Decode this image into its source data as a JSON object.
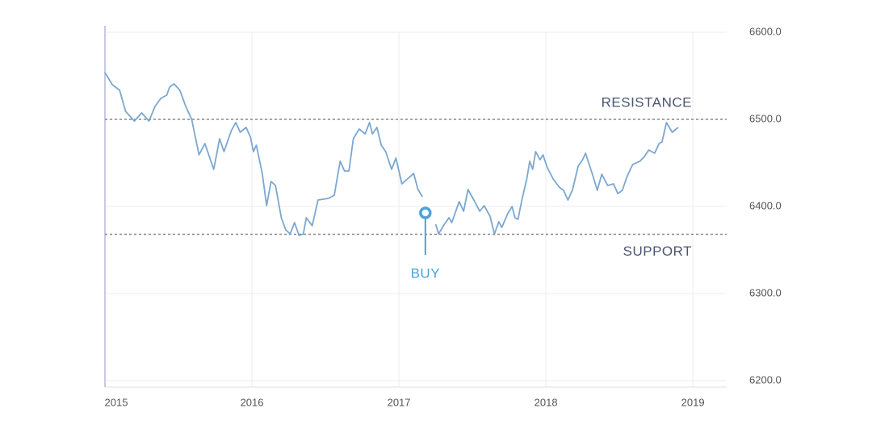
{
  "chart_data": {
    "type": "line",
    "color": "#7ba7d0",
    "x": [
      2015.0,
      2015.05,
      2015.1,
      2015.14,
      2015.2,
      2015.25,
      2015.3,
      2015.34,
      2015.38,
      2015.42,
      2015.44,
      2015.47,
      2015.51,
      2015.55,
      2015.59,
      2015.64,
      2015.68,
      2015.74,
      2015.78,
      2015.81,
      2015.86,
      2015.89,
      2015.92,
      2015.96,
      2015.99,
      2016.01,
      2016.03,
      2016.07,
      2016.1,
      2016.13,
      2016.16,
      2016.2,
      2016.23,
      2016.26,
      2016.29,
      2016.32,
      2016.35,
      2016.37,
      2016.41,
      2016.45,
      2016.52,
      2016.56,
      2016.6,
      2016.63,
      2016.66,
      2016.69,
      2016.73,
      2016.77,
      2016.8,
      2016.82,
      2016.85,
      2016.88,
      2016.91,
      2016.95,
      2016.98,
      2017.02,
      2017.07,
      2017.1,
      2017.13,
      2017.16,
      2017.21,
      2017.25,
      2017.27,
      2017.31,
      2017.34,
      2017.36,
      2017.41,
      2017.44,
      2017.47,
      2017.51,
      2017.55,
      2017.58,
      2017.62,
      2017.65,
      2017.68,
      2017.7,
      2017.74,
      2017.77,
      2017.79,
      2017.81,
      2017.84,
      2017.87,
      2017.89,
      2017.91,
      2017.93,
      2017.96,
      2017.98,
      2018.01,
      2018.05,
      2018.09,
      2018.12,
      2018.15,
      2018.18,
      2018.22,
      2018.25,
      2018.27,
      2018.32,
      2018.35,
      2018.38,
      2018.42,
      2018.46,
      2018.49,
      2018.52,
      2018.55,
      2018.59,
      2018.64,
      2018.67,
      2018.7,
      2018.74,
      2018.77,
      2018.79,
      2018.82,
      2018.86,
      2018.9
    ],
    "values": [
      6553.7,
      6539.8,
      6533.3,
      6509.3,
      6498.1,
      6507.4,
      6498.1,
      6514.8,
      6524.1,
      6527.8,
      6537.0,
      6540.7,
      6533.3,
      6514.8,
      6500,
      6459.3,
      6472.2,
      6442.6,
      6477.8,
      6463.0,
      6487.0,
      6496.3,
      6485.2,
      6490.7,
      6479.6,
      6463.0,
      6470.4,
      6438.0,
      6400.9,
      6428.7,
      6424.1,
      6387.0,
      6373.1,
      6368.5,
      6381.5,
      6366.7,
      6368.5,
      6387.0,
      6377.8,
      6407.4,
      6409.3,
      6413.0,
      6451.9,
      6440.7,
      6440.7,
      6477.8,
      6488.9,
      6483.3,
      6496.3,
      6483.3,
      6490.7,
      6470.4,
      6463.0,
      6442.6,
      6455.6,
      6425.9,
      6433.3,
      6438.0,
      6419.4,
      6411.1,
      null,
      6379.6,
      6368.5,
      6379.6,
      6387.0,
      6381.5,
      6405.6,
      6394.4,
      6419.4,
      6407.4,
      6394.4,
      6400.9,
      6388.9,
      6368.5,
      6382.4,
      6375.9,
      6391.7,
      6400,
      6387.0,
      6385.2,
      6410.2,
      6431.5,
      6451.9,
      6442.6,
      6463.0,
      6453.7,
      6459.3,
      6444.4,
      6431.5,
      6422.2,
      6418.5,
      6407.4,
      6418.5,
      6446.3,
      6453.7,
      6461.1,
      6435.2,
      6418.5,
      6437.0,
      6424.1,
      6425.9,
      6414.8,
      6418.5,
      6433.3,
      6448.1,
      6451.9,
      6457.4,
      6464.8,
      6461.1,
      6472.2,
      6474.1,
      6496.3,
      6485.2,
      6490.7
    ],
    "xlim": [
      2015,
      2019.23
    ],
    "xticks": [
      2015,
      2016,
      2017,
      2018,
      2019
    ],
    "ylim": [
      6200,
      6600
    ],
    "yticks": [
      {
        "value": 6200,
        "label": "6200.0"
      },
      {
        "value": 6300,
        "label": "6300.0"
      },
      {
        "value": 6400,
        "label": "6400.0"
      },
      {
        "value": 6500,
        "label": "6500.0"
      },
      {
        "value": 6600,
        "label": "6600.0"
      }
    ],
    "grid": true,
    "resistance": {
      "value": 6500,
      "label": "RESISTANCE"
    },
    "support": {
      "value": 6368,
      "label": "SUPPORT"
    },
    "buy": {
      "x": 2017.18,
      "y": 6392.6,
      "label": "BUY",
      "color": "#4ba3d9"
    }
  }
}
